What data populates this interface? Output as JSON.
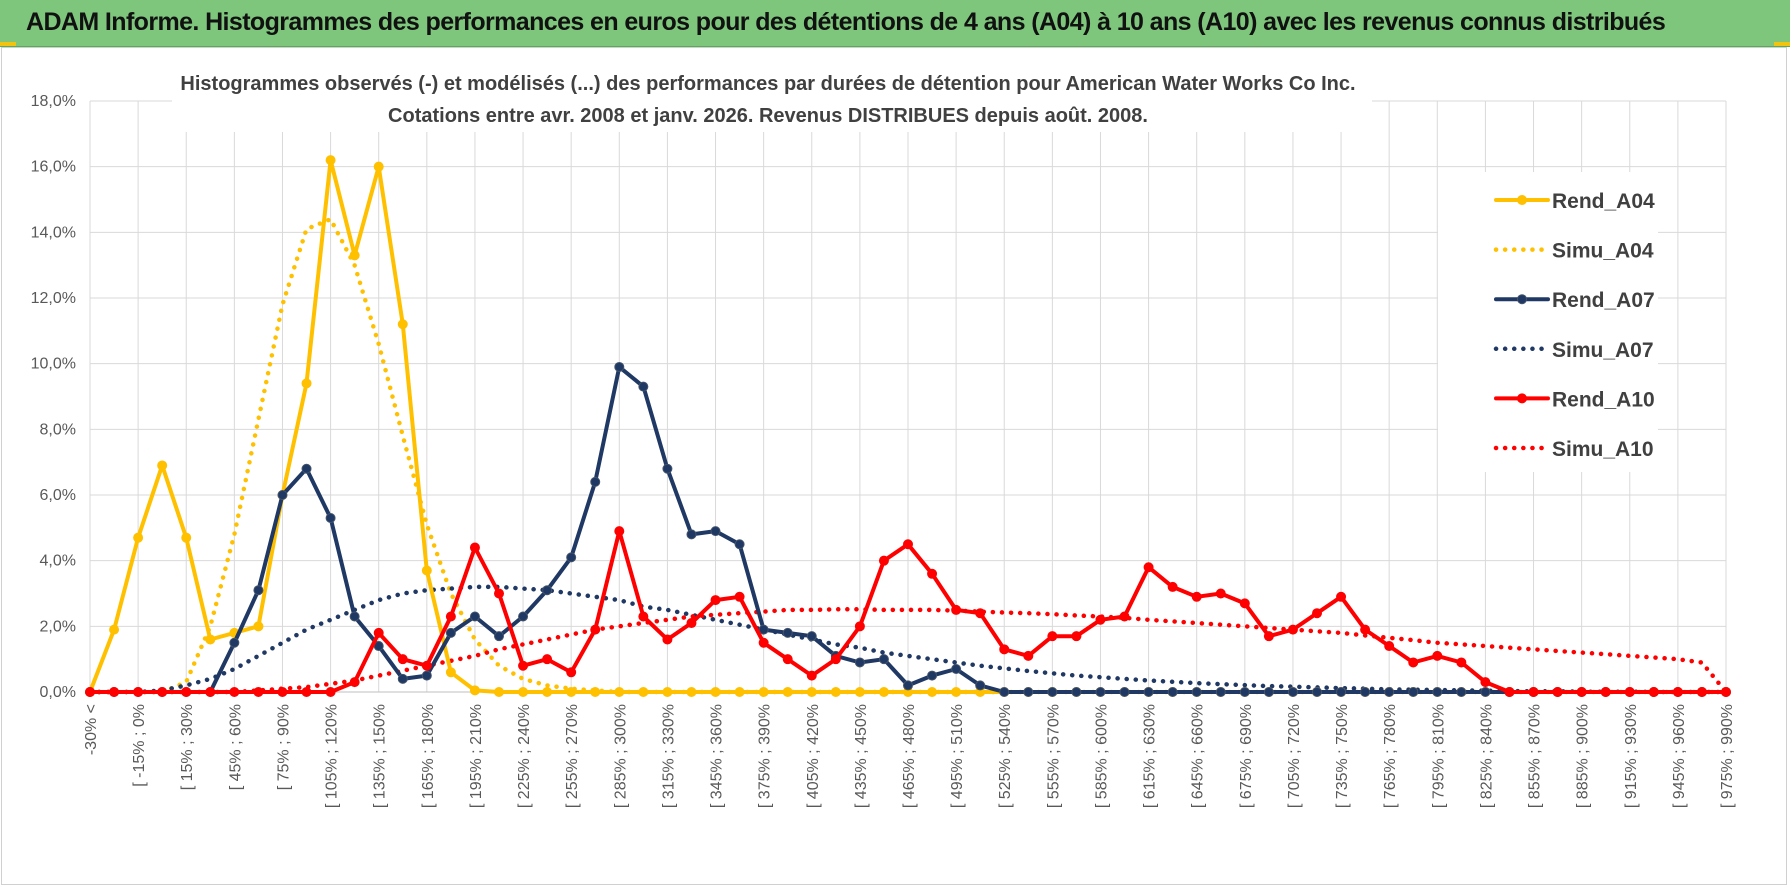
{
  "banner": {
    "title": "ADAM Informe. Histogrammes des performances en euros pour des détentions de 4 ans (A04) à 10 ans (A10) avec les revenus connus distribués"
  },
  "chart_data": {
    "type": "line",
    "title_line1": "Histogrammes observés (-) et modélisés (...) des performances par durées de détention pour American Water Works Co Inc.",
    "title_line2": "Cotations entre avr. 2008 et janv. 2026. Revenus DISTRIBUES depuis août. 2008.",
    "ylim": [
      0,
      18
    ],
    "yticks": [
      "0,0%",
      "2,0%",
      "4,0%",
      "6,0%",
      "8,0%",
      "10,0%",
      "12,0%",
      "14,0%",
      "16,0%",
      "18,0%"
    ],
    "xlabels": [
      "-30% <",
      "[ -15% ; 0%",
      "[ 15% ; 30%",
      "[ 45% ; 60%",
      "[ 75% ; 90%",
      "[ 105% ; 120%",
      "[ 135% ; 150%",
      "[ 165% ; 180%",
      "[ 195% ; 210%",
      "[ 225% ; 240%",
      "[ 255% ; 270%",
      "[ 285% ; 300%",
      "[ 315% ; 330%",
      "[ 345% ; 360%",
      "[ 375% ; 390%",
      "[ 405% ; 420%",
      "[ 435% ; 450%",
      "[ 465% ; 480%",
      "[ 495% ; 510%",
      "[ 525% ; 540%",
      "[ 555% ; 570%",
      "[ 585% ; 600%",
      "[ 615% ; 630%",
      "[ 645% ; 660%",
      "[ 675% ; 690%",
      "[ 705% ; 720%",
      "[ 735% ; 750%",
      "[ 765% ; 780%",
      "[ 795% ; 810%",
      "[ 825% ; 840%",
      "[ 855% ; 870%",
      "[ 885% ; 900%",
      "[ 915% ; 930%",
      "[ 945% ; 960%",
      "[ 975% ; 990%"
    ],
    "legend_position": "top-right",
    "series": [
      {
        "name": "Rend_A04",
        "style": "solid",
        "color": "#ffc000",
        "markers": true,
        "values": [
          0,
          1.9,
          4.7,
          6.9,
          4.7,
          1.6,
          1.8,
          2.0,
          6.0,
          9.4,
          16.2,
          13.3,
          16.0,
          11.2,
          3.7,
          0.6,
          0.05,
          0,
          0,
          0,
          0,
          0,
          0,
          0,
          0,
          0,
          0,
          0,
          0,
          0,
          0,
          0,
          0,
          0,
          0,
          0,
          0,
          0,
          0,
          0,
          0,
          0,
          0,
          0,
          0,
          0,
          0,
          0,
          0,
          0,
          0,
          0,
          0,
          0,
          0,
          0,
          0,
          0,
          0,
          0,
          0,
          0,
          0,
          0,
          0,
          0,
          0,
          0,
          0
        ]
      },
      {
        "name": "Simu_A04",
        "style": "dotted",
        "color": "#ffc000",
        "markers": false,
        "values": [
          0,
          0,
          0,
          0,
          0.3,
          2.0,
          4.8,
          8.3,
          11.8,
          14.1,
          14.4,
          13.0,
          10.6,
          7.8,
          5.1,
          3.0,
          1.6,
          0.8,
          0.4,
          0.2,
          0.1,
          0.05,
          0,
          0,
          0,
          0,
          0,
          0,
          0,
          0,
          0,
          0,
          0,
          0,
          0,
          0,
          0,
          0,
          0,
          0,
          0,
          0,
          0,
          0,
          0,
          0,
          0,
          0,
          0,
          0,
          0,
          0,
          0,
          0,
          0,
          0,
          0,
          0,
          0,
          0,
          0,
          0,
          0,
          0,
          0,
          0,
          0,
          0,
          0
        ]
      },
      {
        "name": "Rend_A07",
        "style": "solid",
        "color": "#1f3864",
        "markers": true,
        "values": [
          0,
          0,
          0,
          0,
          0,
          0,
          1.5,
          3.1,
          6.0,
          6.8,
          5.3,
          2.3,
          1.4,
          0.4,
          0.5,
          1.8,
          2.3,
          1.7,
          2.3,
          3.1,
          4.1,
          6.4,
          9.9,
          9.3,
          6.8,
          4.8,
          4.9,
          4.5,
          1.9,
          1.8,
          1.7,
          1.1,
          0.9,
          1.0,
          0.2,
          0.5,
          0.7,
          0.2,
          0,
          0,
          0,
          0,
          0,
          0,
          0,
          0,
          0,
          0,
          0,
          0,
          0,
          0,
          0,
          0,
          0,
          0,
          0,
          0,
          0,
          0,
          0,
          0,
          0,
          0,
          0,
          0,
          0,
          0,
          0
        ]
      },
      {
        "name": "Simu_A07",
        "style": "dotted",
        "color": "#1f3864",
        "markers": false,
        "values": [
          0,
          0,
          0,
          0.05,
          0.2,
          0.4,
          0.7,
          1.1,
          1.5,
          1.9,
          2.2,
          2.5,
          2.8,
          3.0,
          3.1,
          3.15,
          3.2,
          3.2,
          3.15,
          3.1,
          3.0,
          2.9,
          2.8,
          2.6,
          2.5,
          2.35,
          2.2,
          2.05,
          1.9,
          1.75,
          1.6,
          1.45,
          1.35,
          1.2,
          1.1,
          1.0,
          0.9,
          0.8,
          0.72,
          0.64,
          0.57,
          0.5,
          0.45,
          0.4,
          0.35,
          0.31,
          0.27,
          0.24,
          0.21,
          0.18,
          0.16,
          0.14,
          0.12,
          0.1,
          0.08,
          0.07,
          0.06,
          0.05,
          0.04,
          0.03,
          0.02,
          0.02,
          0.01,
          0.01,
          0.01,
          0,
          0,
          0,
          0
        ]
      },
      {
        "name": "Rend_A10",
        "style": "solid",
        "color": "#ff0000",
        "markers": true,
        "values": [
          0,
          0,
          0,
          0,
          0,
          0,
          0,
          0,
          0,
          0,
          0,
          0.3,
          1.8,
          1.0,
          0.8,
          2.3,
          4.4,
          3.0,
          0.8,
          1.0,
          0.6,
          1.9,
          4.9,
          2.3,
          1.6,
          2.1,
          2.8,
          2.9,
          1.5,
          1.0,
          0.5,
          1.0,
          2.0,
          4.0,
          4.5,
          3.6,
          2.5,
          2.4,
          1.3,
          1.1,
          1.7,
          1.7,
          2.2,
          2.3,
          3.8,
          3.2,
          2.9,
          3.0,
          2.7,
          1.7,
          1.9,
          2.4,
          2.9,
          1.9,
          1.4,
          0.9,
          1.1,
          0.9,
          0.3,
          0,
          0,
          0,
          0,
          0,
          0,
          0,
          0,
          0,
          0
        ]
      },
      {
        "name": "Simu_A10",
        "style": "dotted",
        "color": "#ff0000",
        "markers": false,
        "values": [
          0,
          0,
          0,
          0,
          0,
          0,
          0,
          0.05,
          0.1,
          0.15,
          0.25,
          0.35,
          0.5,
          0.65,
          0.8,
          0.95,
          1.1,
          1.3,
          1.45,
          1.6,
          1.75,
          1.9,
          2.0,
          2.1,
          2.2,
          2.3,
          2.35,
          2.4,
          2.45,
          2.5,
          2.5,
          2.52,
          2.52,
          2.5,
          2.5,
          2.5,
          2.48,
          2.45,
          2.42,
          2.4,
          2.37,
          2.33,
          2.3,
          2.26,
          2.2,
          2.15,
          2.1,
          2.05,
          2.0,
          1.95,
          1.9,
          1.85,
          1.8,
          1.72,
          1.65,
          1.58,
          1.5,
          1.45,
          1.4,
          1.35,
          1.3,
          1.25,
          1.2,
          1.15,
          1.1,
          1.05,
          1.0,
          0.9,
          0.0
        ]
      }
    ]
  }
}
